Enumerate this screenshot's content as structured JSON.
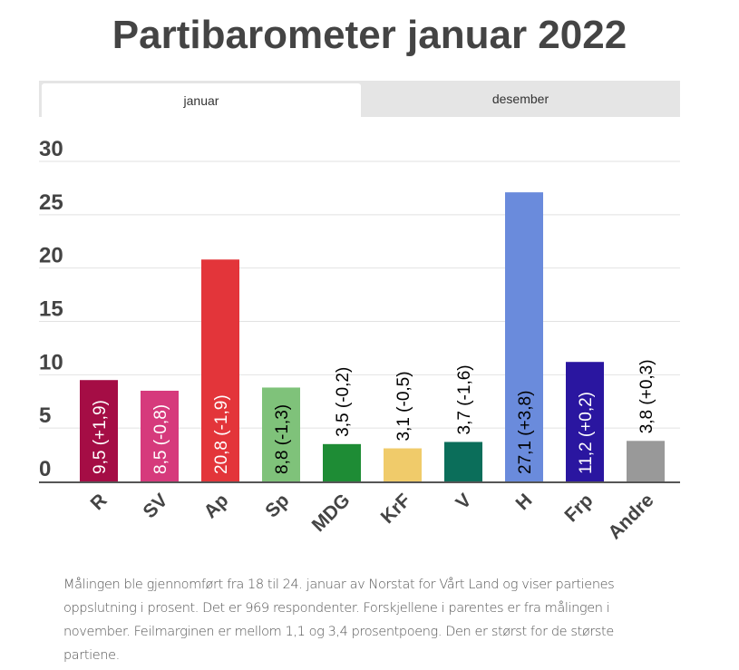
{
  "chart_data": {
    "type": "bar",
    "title": "Partibarometer januar 2022",
    "tabs": [
      {
        "label": "januar",
        "active": true
      },
      {
        "label": "desember",
        "active": false
      }
    ],
    "categories": [
      "R",
      "SV",
      "Ap",
      "Sp",
      "MDG",
      "KrF",
      "V",
      "H",
      "Frp",
      "Andre"
    ],
    "values": [
      9.5,
      8.5,
      20.8,
      8.8,
      3.5,
      3.1,
      3.7,
      27.1,
      11.2,
      3.8
    ],
    "data_labels": [
      "9,5 (+1,9)",
      "8,5 (-0,8)",
      "20,8 (-1,9)",
      "8,8 (-1,3)",
      "3,5 (-0,2)",
      "3,1 (-0,5)",
      "3,7 (-1,6)",
      "27,1 (+3,8)",
      "11,2 (+0,2)",
      "3,8 (+0,3)"
    ],
    "colors": [
      "#a50d45",
      "#d63a7c",
      "#e3353a",
      "#7fc27a",
      "#1e8c35",
      "#f0cb6a",
      "#0b6e5a",
      "#6a8bdc",
      "#2a16a0",
      "#999999"
    ],
    "label_colors": [
      "#ffffff",
      "#ffffff",
      "#ffffff",
      "#000000",
      "#000000",
      "#000000",
      "#000000",
      "#000000",
      "#ffffff",
      "#000000"
    ],
    "yticks": [
      0,
      5,
      10,
      15,
      20,
      25,
      30
    ],
    "ylim": [
      0,
      30
    ],
    "grid": true,
    "xlabel": "",
    "ylabel": ""
  },
  "footnote": "Målingen ble gjennomført fra 18 til 24. januar av Norstat for Vårt Land og viser partienes oppslutning i prosent. Det er 969 respondenter. Forskjellene i parentes er fra målingen i november. Feilmarginen er mellom 1,1 og 3,4 prosentpoeng. Den er størst for de største partiene."
}
